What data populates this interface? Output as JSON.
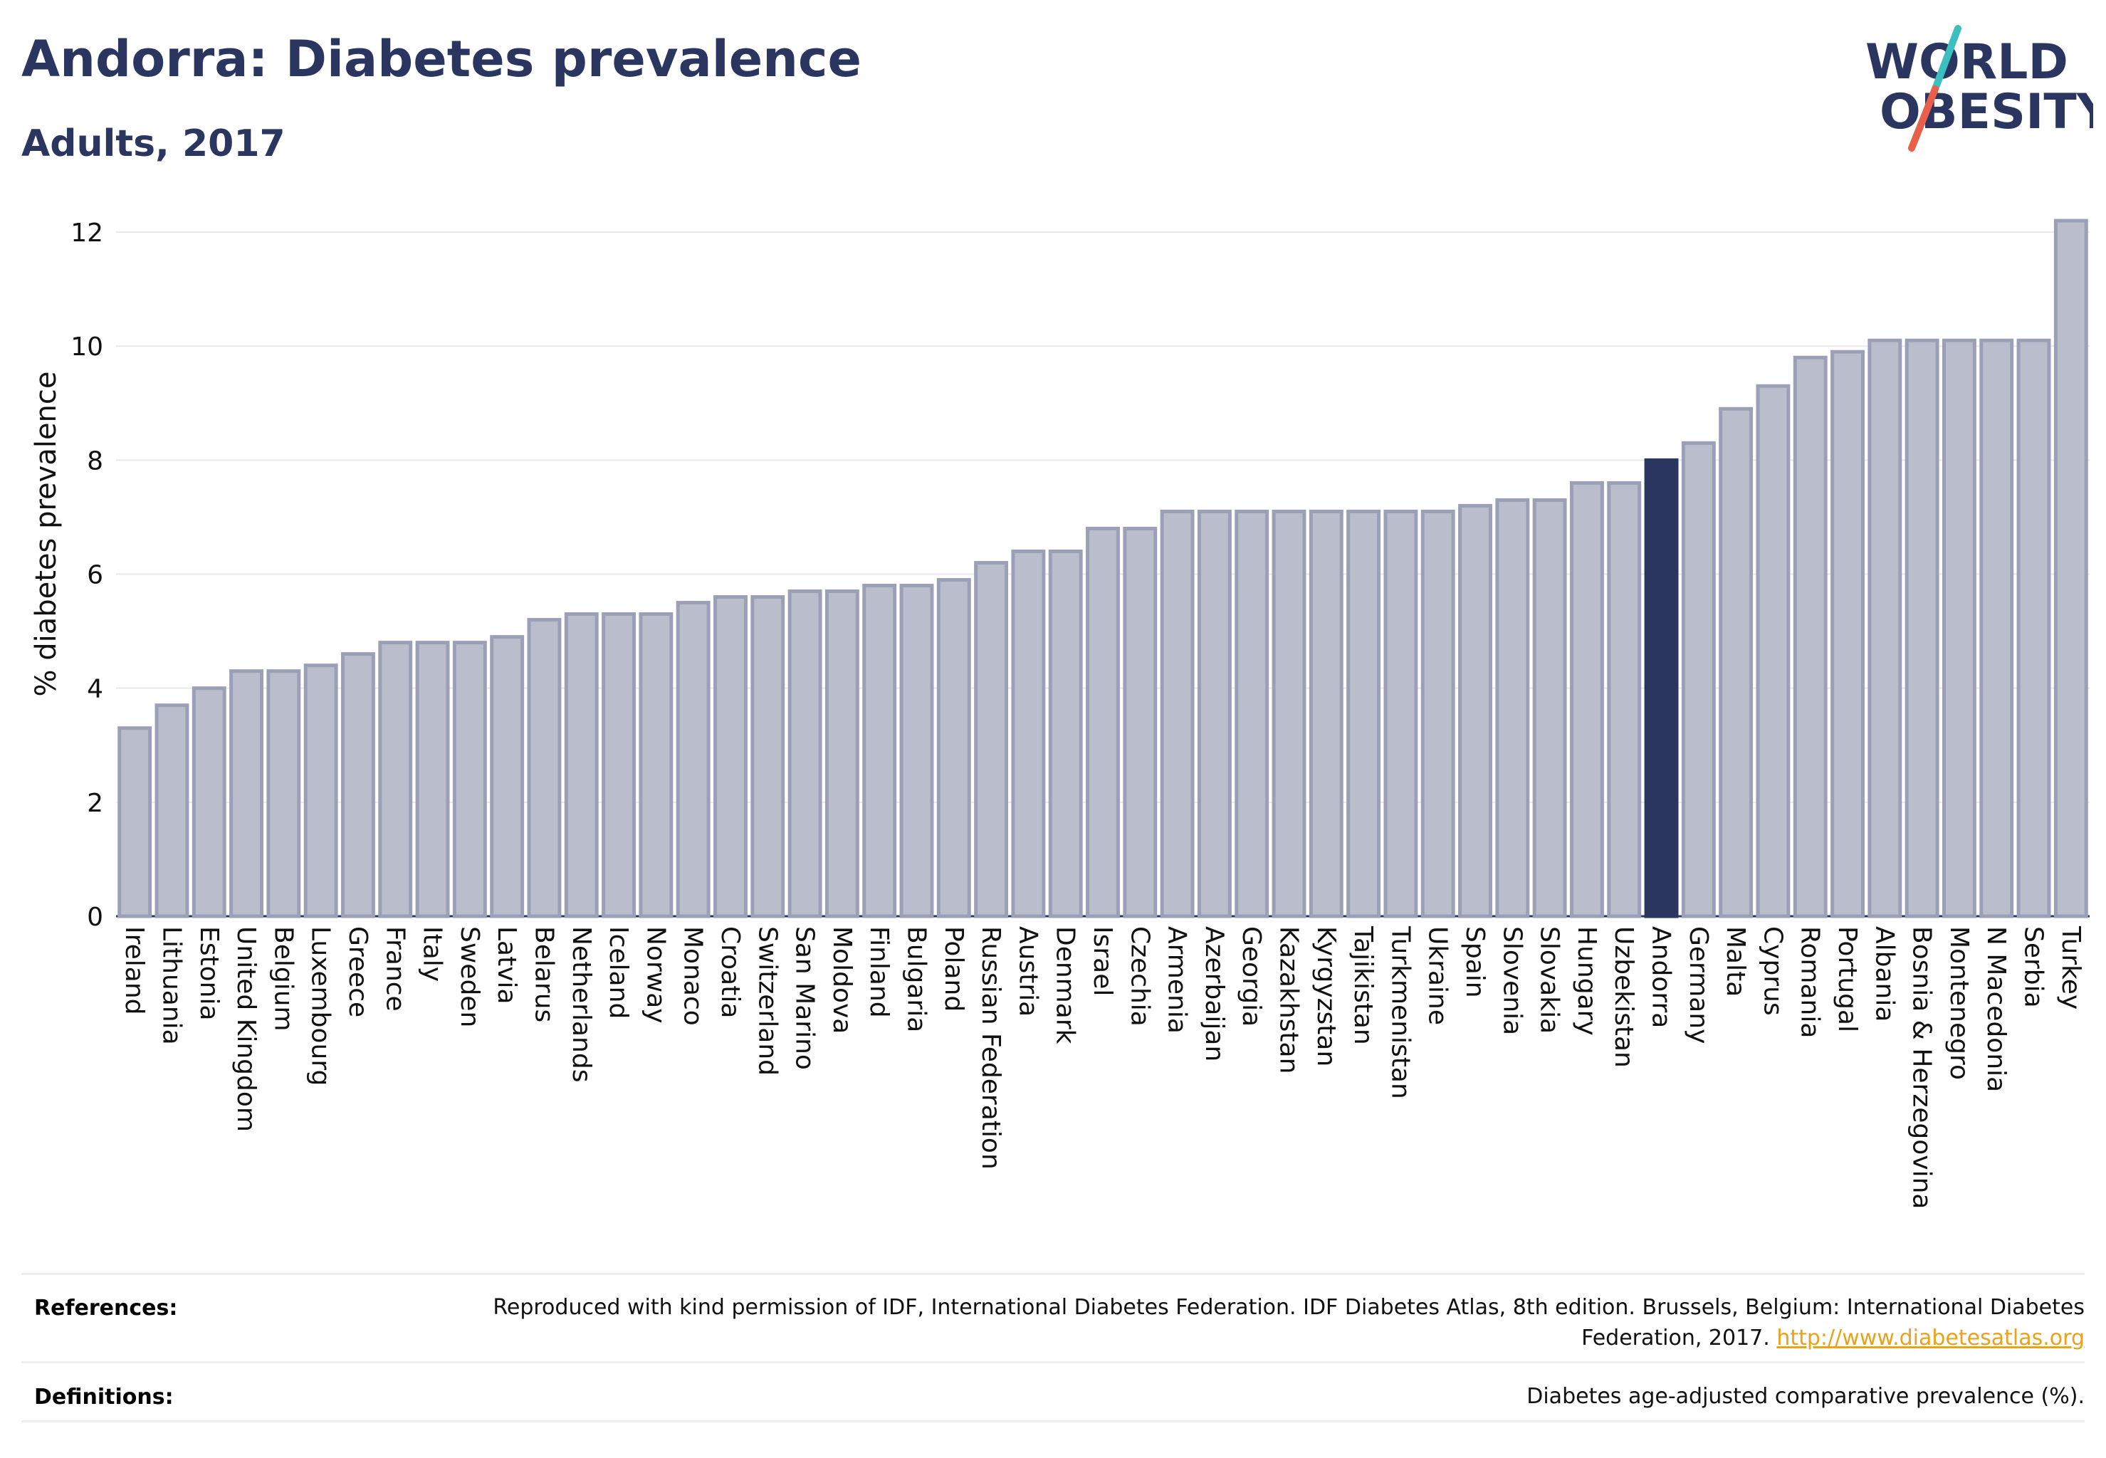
{
  "header": {
    "title": "Andorra: Diabetes prevalence",
    "subtitle": "Adults, 2017"
  },
  "logo": {
    "line1": "WORLD",
    "line2": "OBESITY",
    "accent_colors": [
      "#3bbfbf",
      "#e8604c"
    ]
  },
  "chart_data": {
    "type": "bar",
    "ylabel": "% diabetes prevalence",
    "xlabel": "",
    "ylim": [
      0,
      12.2
    ],
    "yticks": [
      0,
      2,
      4,
      6,
      8,
      10,
      12
    ],
    "grid": true,
    "highlight": "Andorra",
    "colors": {
      "bar": "#b9bdcc",
      "bar_edge": "#9ba0b6",
      "highlight": "#2a3660"
    },
    "categories": [
      "Ireland",
      "Lithuania",
      "Estonia",
      "United Kingdom",
      "Belgium",
      "Luxembourg",
      "Greece",
      "France",
      "Italy",
      "Sweden",
      "Latvia",
      "Belarus",
      "Netherlands",
      "Iceland",
      "Norway",
      "Monaco",
      "Croatia",
      "Switzerland",
      "San Marino",
      "Moldova",
      "Finland",
      "Bulgaria",
      "Poland",
      "Russian Federation",
      "Austria",
      "Denmark",
      "Israel",
      "Czechia",
      "Armenia",
      "Azerbaijan",
      "Georgia",
      "Kazakhstan",
      "Kyrgyzstan",
      "Tajikistan",
      "Turkmenistan",
      "Ukraine",
      "Spain",
      "Slovenia",
      "Slovakia",
      "Hungary",
      "Uzbekistan",
      "Andorra",
      "Germany",
      "Malta",
      "Cyprus",
      "Romania",
      "Portugal",
      "Albania",
      "Bosnia & Herzegovina",
      "Montenegro",
      "N Macedonia",
      "Serbia",
      "Turkey"
    ],
    "values": [
      3.3,
      3.7,
      4.0,
      4.3,
      4.3,
      4.4,
      4.6,
      4.8,
      4.8,
      4.8,
      4.9,
      5.2,
      5.3,
      5.3,
      5.3,
      5.5,
      5.6,
      5.6,
      5.7,
      5.7,
      5.8,
      5.8,
      5.9,
      6.2,
      6.4,
      6.4,
      6.8,
      6.8,
      7.1,
      7.1,
      7.1,
      7.1,
      7.1,
      7.1,
      7.1,
      7.1,
      7.2,
      7.3,
      7.3,
      7.6,
      7.6,
      8.0,
      8.3,
      8.9,
      9.3,
      9.8,
      9.9,
      10.1,
      10.1,
      10.1,
      10.1,
      10.1,
      12.2
    ]
  },
  "footer": {
    "references_label": "References:",
    "references_text": "Reproduced with kind permission of IDF, International Diabetes Federation. IDF Diabetes Atlas, 8th edition. Brussels, Belgium: International Diabetes Federation, 2017.",
    "references_link": "http://www.diabetesatlas.org",
    "definitions_label": "Definitions:",
    "definitions_text": "Diabetes age-adjusted comparative prevalence (%)."
  }
}
